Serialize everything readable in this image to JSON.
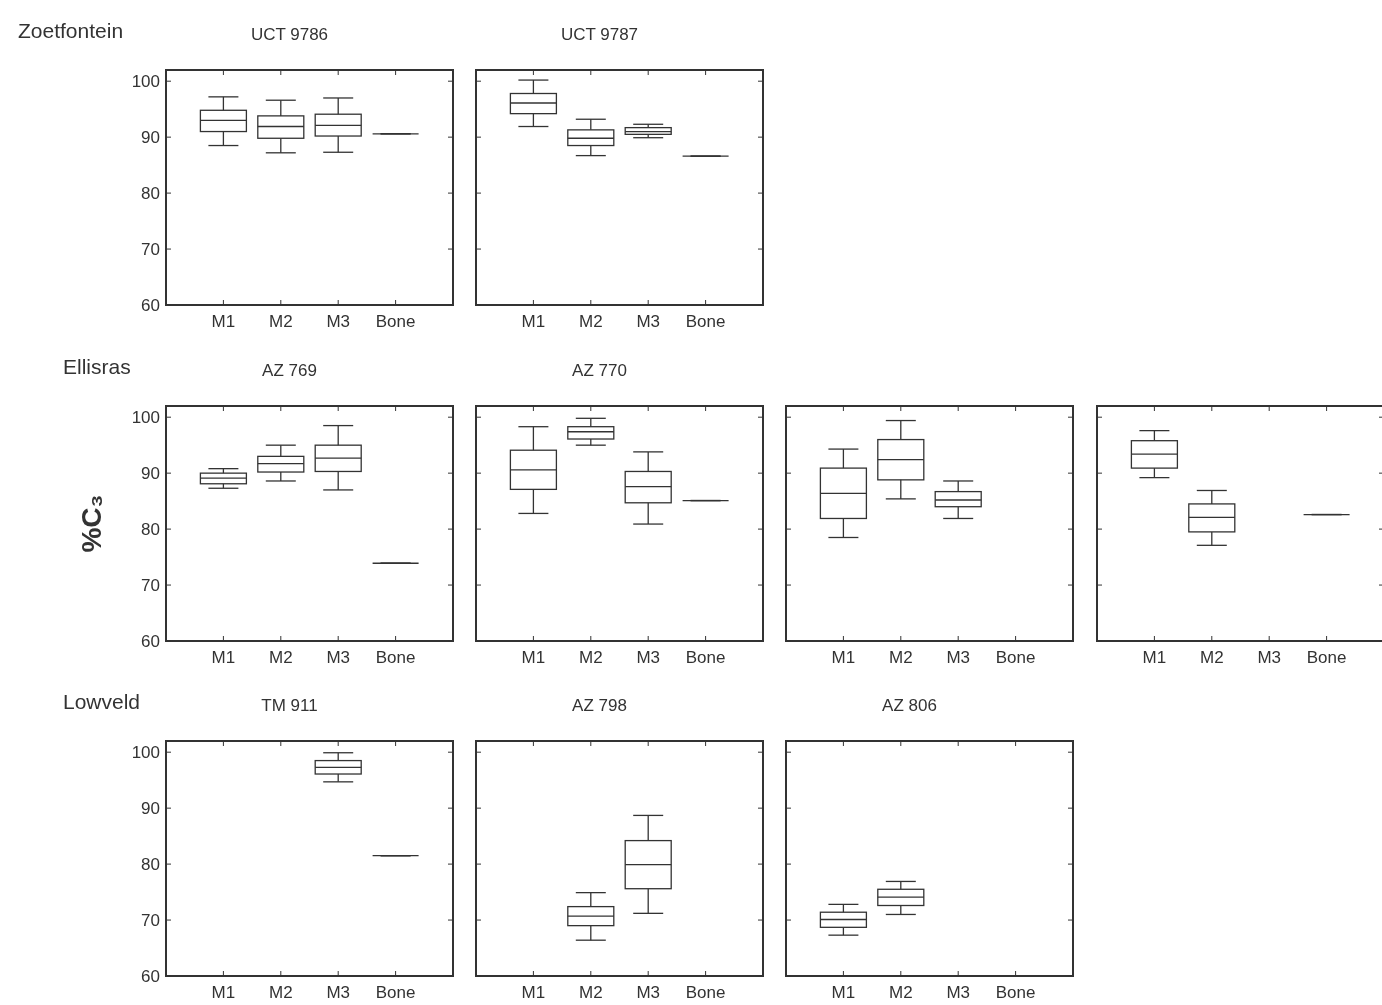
{
  "chart_data": [
    {
      "type": "box",
      "title": "UCT 9786",
      "annotations": [
        "Zoetfontein"
      ],
      "categories": [
        "M1",
        "M2",
        "M3",
        "Bone"
      ],
      "ylim": [
        60,
        102
      ],
      "yticks": [
        60,
        70,
        80,
        90,
        100
      ],
      "boxes": [
        {
          "low": 88.5,
          "q1": 91.0,
          "median": 93.0,
          "q3": 94.8,
          "high": 97.2
        },
        {
          "low": 87.2,
          "q1": 89.8,
          "median": 91.9,
          "q3": 93.8,
          "high": 96.6
        },
        {
          "low": 87.3,
          "q1": 90.2,
          "median": 92.1,
          "q3": 94.1,
          "high": 97.0
        },
        {
          "low": 90.6,
          "q1": 90.6,
          "median": 90.6,
          "q3": 90.6,
          "high": 90.6
        }
      ]
    },
    {
      "type": "box",
      "title": "UCT 9787",
      "categories": [
        "M1",
        "M2",
        "M3",
        "Bone"
      ],
      "ylim": [
        60,
        102
      ],
      "yticks": [
        60,
        70,
        80,
        90,
        100
      ],
      "tick_labels": "x",
      "boxes": [
        {
          "low": 91.9,
          "q1": 94.2,
          "median": 96.1,
          "q3": 97.8,
          "high": 100.2
        },
        {
          "low": 86.7,
          "q1": 88.5,
          "median": 89.8,
          "q3": 91.3,
          "high": 93.2
        },
        {
          "low": 89.9,
          "q1": 90.5,
          "median": 91.0,
          "q3": 91.7,
          "high": 92.3
        },
        {
          "low": 86.6,
          "q1": 86.6,
          "median": 86.6,
          "q3": 86.6,
          "high": 86.6
        }
      ]
    },
    {
      "type": "box",
      "title": "AZ 769",
      "annotations": [
        "Ellisras"
      ],
      "ylabel": "%C₃",
      "categories": [
        "M1",
        "M2",
        "M3",
        "Bone"
      ],
      "ylim": [
        60,
        102
      ],
      "yticks": [
        60,
        70,
        80,
        90,
        100
      ],
      "boxes": [
        {
          "low": 87.3,
          "q1": 88.1,
          "median": 89.1,
          "q3": 90.0,
          "high": 90.8
        },
        {
          "low": 88.6,
          "q1": 90.2,
          "median": 91.7,
          "q3": 93.0,
          "high": 95.0
        },
        {
          "low": 87.0,
          "q1": 90.3,
          "median": 92.7,
          "q3": 95.0,
          "high": 98.5
        },
        {
          "low": 73.9,
          "q1": 73.9,
          "median": 73.9,
          "q3": 73.9,
          "high": 73.9
        }
      ]
    },
    {
      "type": "box",
      "title": "AZ 770",
      "categories": [
        "M1",
        "M2",
        "M3",
        "Bone"
      ],
      "ylim": [
        60,
        102
      ],
      "yticks": [
        60,
        70,
        80,
        90,
        100
      ],
      "tick_labels": "x",
      "boxes": [
        {
          "low": 82.8,
          "q1": 87.1,
          "median": 90.6,
          "q3": 94.1,
          "high": 98.3
        },
        {
          "low": 95.0,
          "q1": 96.1,
          "median": 97.4,
          "q3": 98.3,
          "high": 99.8
        },
        {
          "low": 80.9,
          "q1": 84.7,
          "median": 87.6,
          "q3": 90.3,
          "high": 93.8
        },
        {
          "low": 85.1,
          "q1": 85.1,
          "median": 85.1,
          "q3": 85.1,
          "high": 85.1
        }
      ]
    },
    {
      "type": "box",
      "categories": [
        "M1",
        "M2",
        "M3",
        "Bone"
      ],
      "ylim": [
        60,
        102
      ],
      "yticks": [
        60,
        70,
        80,
        90,
        100
      ],
      "tick_labels": "x",
      "boxes": [
        {
          "low": 78.5,
          "q1": 81.9,
          "median": 86.4,
          "q3": 90.9,
          "high": 94.3
        },
        {
          "low": 85.4,
          "q1": 88.8,
          "median": 92.4,
          "q3": 96.0,
          "high": 99.4
        },
        {
          "low": 81.9,
          "q1": 84.0,
          "median": 85.2,
          "q3": 86.7,
          "high": 88.6
        },
        null
      ]
    },
    {
      "type": "box",
      "categories": [
        "M1",
        "M2",
        "M3",
        "Bone"
      ],
      "ylim": [
        60,
        102
      ],
      "yticks": [
        60,
        70,
        80,
        90,
        100
      ],
      "tick_labels": "x",
      "boxes": [
        {
          "low": 89.2,
          "q1": 90.9,
          "median": 93.4,
          "q3": 95.8,
          "high": 97.6
        },
        {
          "low": 77.1,
          "q1": 79.5,
          "median": 82.1,
          "q3": 84.5,
          "high": 86.9
        },
        null,
        {
          "low": 82.6,
          "q1": 82.6,
          "median": 82.6,
          "q3": 82.6,
          "high": 82.6
        }
      ]
    },
    {
      "type": "box",
      "title": "TM 911",
      "annotations": [
        "Lowveld"
      ],
      "categories": [
        "M1",
        "M2",
        "M3",
        "Bone"
      ],
      "ylim": [
        60,
        102
      ],
      "yticks": [
        60,
        70,
        80,
        90,
        100
      ],
      "boxes": [
        null,
        null,
        {
          "low": 94.7,
          "q1": 96.1,
          "median": 97.3,
          "q3": 98.5,
          "high": 99.9
        },
        {
          "low": 81.5,
          "q1": 81.5,
          "median": 81.5,
          "q3": 81.5,
          "high": 81.5
        }
      ]
    },
    {
      "type": "box",
      "title": "AZ 798",
      "categories": [
        "M1",
        "M2",
        "M3",
        "Bone"
      ],
      "ylim": [
        60,
        102
      ],
      "yticks": [
        60,
        70,
        80,
        90,
        100
      ],
      "tick_labels": "x",
      "boxes": [
        null,
        {
          "low": 66.4,
          "q1": 69.0,
          "median": 70.7,
          "q3": 72.4,
          "high": 74.9
        },
        {
          "low": 71.2,
          "q1": 75.6,
          "median": 79.9,
          "q3": 84.2,
          "high": 88.7
        },
        null
      ]
    },
    {
      "type": "box",
      "title": "AZ 806",
      "categories": [
        "M1",
        "M2",
        "M3",
        "Bone"
      ],
      "ylim": [
        60,
        102
      ],
      "yticks": [
        60,
        70,
        80,
        90,
        100
      ],
      "tick_labels": "x",
      "boxes": [
        {
          "low": 67.3,
          "q1": 68.7,
          "median": 70.1,
          "q3": 71.4,
          "high": 72.8
        },
        {
          "low": 71.0,
          "q1": 72.6,
          "median": 74.1,
          "q3": 75.5,
          "high": 76.9
        },
        null,
        null
      ]
    }
  ]
}
